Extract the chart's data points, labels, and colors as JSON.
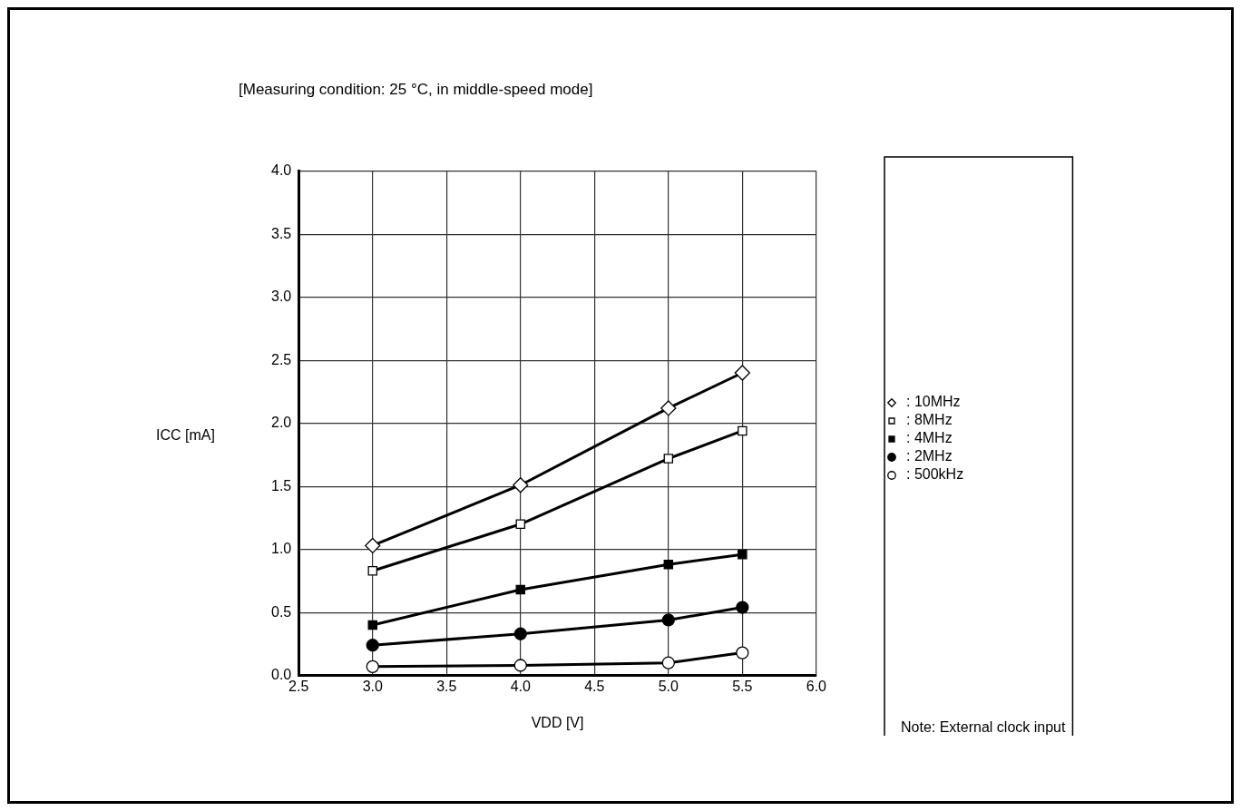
{
  "chart_data": {
    "type": "line",
    "title": "[Measuring condition: 25 °C, in middle-speed mode]",
    "xlabel": "VDD [V]",
    "ylabel": "ICC [mA]",
    "x": [
      3.0,
      4.0,
      5.0,
      5.5
    ],
    "series": [
      {
        "name": ": 10MHz",
        "color": "#000000",
        "marker": "diamond",
        "values": [
          1.03,
          1.51,
          2.12,
          2.4
        ]
      },
      {
        "name": ": 8MHz",
        "color": "#000000",
        "marker": "square",
        "values": [
          0.83,
          1.2,
          1.72,
          1.94
        ]
      },
      {
        "name": ": 4MHz",
        "color": "#000000",
        "marker": "square",
        "values": [
          0.4,
          0.68,
          0.88,
          0.96
        ]
      },
      {
        "name": ": 2MHz",
        "color": "#000000",
        "marker": "circle",
        "values": [
          0.24,
          0.33,
          0.44,
          0.54
        ]
      },
      {
        "name": ": 500kHz",
        "color": "#000000",
        "marker": "circle",
        "values": [
          0.07,
          0.08,
          0.1,
          0.18
        ]
      }
    ],
    "xlim": [
      2.5,
      6.0
    ],
    "xticks": [
      {
        "value": 2.5,
        "label": "2.5"
      },
      {
        "value": 3.0,
        "label": "3.0"
      },
      {
        "value": 3.5,
        "label": "3.5"
      },
      {
        "value": 4.0,
        "label": "4.0"
      },
      {
        "value": 4.5,
        "label": "4.5"
      },
      {
        "value": 5.0,
        "label": "5.0"
      },
      {
        "value": 5.5,
        "label": "5.5"
      },
      {
        "value": 6.0,
        "label": "6.0"
      }
    ],
    "ylim": [
      0,
      4.0
    ],
    "yticks": [
      {
        "value": 0,
        "label": "0.0"
      },
      {
        "value": 0.5,
        "label": "0.5"
      },
      {
        "value": 1.0,
        "label": "1.0"
      },
      {
        "value": 1.5,
        "label": "1.5"
      },
      {
        "value": 2.0,
        "label": "2.0"
      },
      {
        "value": 2.5,
        "label": "2.5"
      },
      {
        "value": 3.0,
        "label": "3.0"
      },
      {
        "value": 3.5,
        "label": "3.5"
      },
      {
        "value": 4.0,
        "label": "4.0"
      }
    ],
    "grid": true,
    "legend": "right",
    "line_style": "solid",
    "annotations": [
      "Note: External clock input"
    ]
  }
}
